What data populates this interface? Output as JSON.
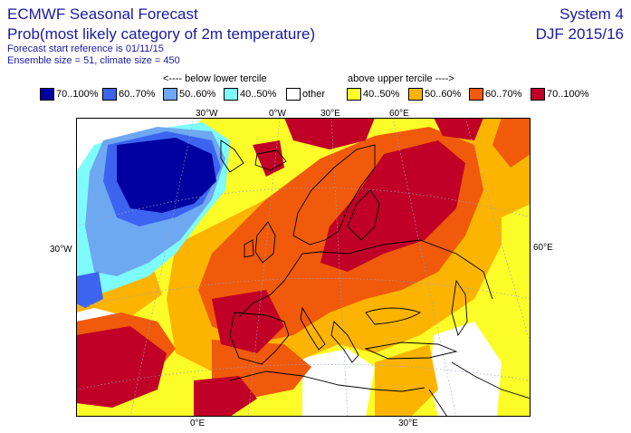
{
  "header": {
    "title": "ECMWF Seasonal Forecast",
    "subtitle": "Prob(most likely category of 2m temperature)",
    "forecast_start": "Forecast start reference is 01/11/15",
    "ensemble": "Ensemble size = 51, climate size = 450",
    "system": "System 4",
    "period": "DJF 2015/16"
  },
  "legend": {
    "below_label": "<---- below lower tercile",
    "above_label": "above upper tercile ---->",
    "items": [
      {
        "label": "70..100%",
        "color": "#0000a0"
      },
      {
        "label": "60..70%",
        "color": "#3c64f0"
      },
      {
        "label": "50..60%",
        "color": "#6ea8f0"
      },
      {
        "label": "40..50%",
        "color": "#7efcfc"
      },
      {
        "label": "other",
        "color": "#ffffff"
      },
      {
        "label": "40..50%",
        "color": "#fcfc28"
      },
      {
        "label": "50..60%",
        "color": "#fcb400"
      },
      {
        "label": "60..70%",
        "color": "#f05a0a"
      },
      {
        "label": "70..100%",
        "color": "#c00026"
      }
    ]
  },
  "map": {
    "top_labels": [
      "30°W",
      "0°W",
      "30°E",
      "60°E"
    ],
    "left_label": "30°W",
    "right_label": "60°E",
    "bottom_labels": [
      "0°E",
      "30°E"
    ]
  }
}
